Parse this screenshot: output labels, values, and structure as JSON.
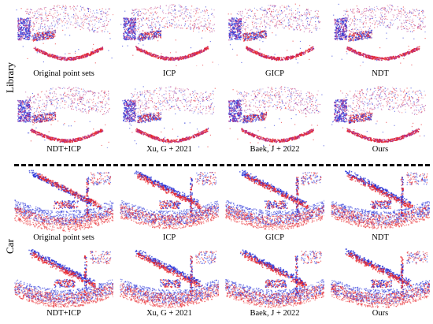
{
  "sections": [
    {
      "label": "Library",
      "rows": [
        [
          "Original point sets",
          "ICP",
          "GICP",
          "NDT"
        ],
        [
          "NDT+ICP",
          "Xu, G + 2021",
          "Baek, J + 2022",
          "Ours"
        ]
      ]
    },
    {
      "label": "Car",
      "rows": [
        [
          "Original point sets",
          "ICP",
          "GICP",
          "NDT"
        ],
        [
          "NDT+ICP",
          "Xu, G + 2021",
          "Baek, J + 2022",
          "Ours"
        ]
      ]
    }
  ],
  "colors": {
    "source": "#e8242b",
    "target": "#2632d8",
    "overlap": "#b1308a"
  }
}
